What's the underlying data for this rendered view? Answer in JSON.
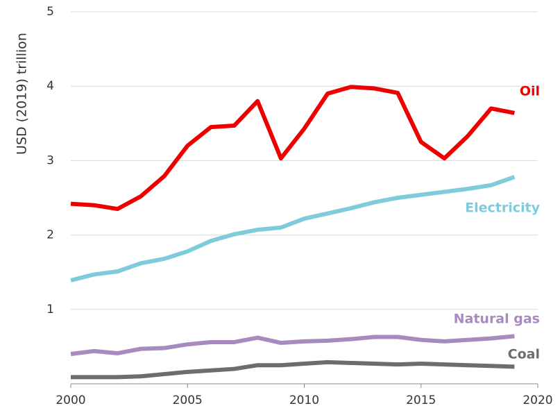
{
  "chart_data": {
    "type": "line",
    "y_label": "USD (2019) trillion",
    "x": [
      2000,
      2001,
      2002,
      2003,
      2004,
      2005,
      2006,
      2007,
      2008,
      2009,
      2010,
      2011,
      2012,
      2013,
      2014,
      2015,
      2016,
      2017,
      2018,
      2019
    ],
    "series": [
      {
        "name": "Oil",
        "color": "#ee0000",
        "values": [
          2.42,
          2.4,
          2.35,
          2.52,
          2.79,
          3.2,
          3.45,
          3.47,
          3.8,
          3.03,
          3.43,
          3.9,
          3.99,
          3.97,
          3.91,
          3.25,
          3.03,
          3.33,
          3.7,
          3.64
        ]
      },
      {
        "name": "Electricity",
        "color": "#7ecbdc",
        "values": [
          1.39,
          1.47,
          1.51,
          1.62,
          1.68,
          1.78,
          1.92,
          2.01,
          2.07,
          2.1,
          2.22,
          2.29,
          2.36,
          2.44,
          2.5,
          2.54,
          2.58,
          2.62,
          2.67,
          2.78
        ]
      },
      {
        "name": "Natural gas",
        "color": "#a78bc0",
        "values": [
          0.4,
          0.44,
          0.41,
          0.47,
          0.48,
          0.53,
          0.56,
          0.56,
          0.62,
          0.55,
          0.57,
          0.58,
          0.6,
          0.63,
          0.63,
          0.59,
          0.57,
          0.59,
          0.61,
          0.64
        ]
      },
      {
        "name": "Coal",
        "color": "#6d6d6d",
        "values": [
          0.09,
          0.09,
          0.09,
          0.1,
          0.13,
          0.16,
          0.18,
          0.2,
          0.25,
          0.25,
          0.27,
          0.29,
          0.28,
          0.27,
          0.26,
          0.27,
          0.26,
          0.25,
          0.24,
          0.23
        ]
      }
    ],
    "xlim": [
      2000,
      2020
    ],
    "xticks": [
      2000,
      2005,
      2010,
      2015,
      2020
    ],
    "ylim": [
      0,
      5
    ],
    "yticks": [
      1,
      2,
      3,
      4,
      5
    ],
    "grid": true
  }
}
